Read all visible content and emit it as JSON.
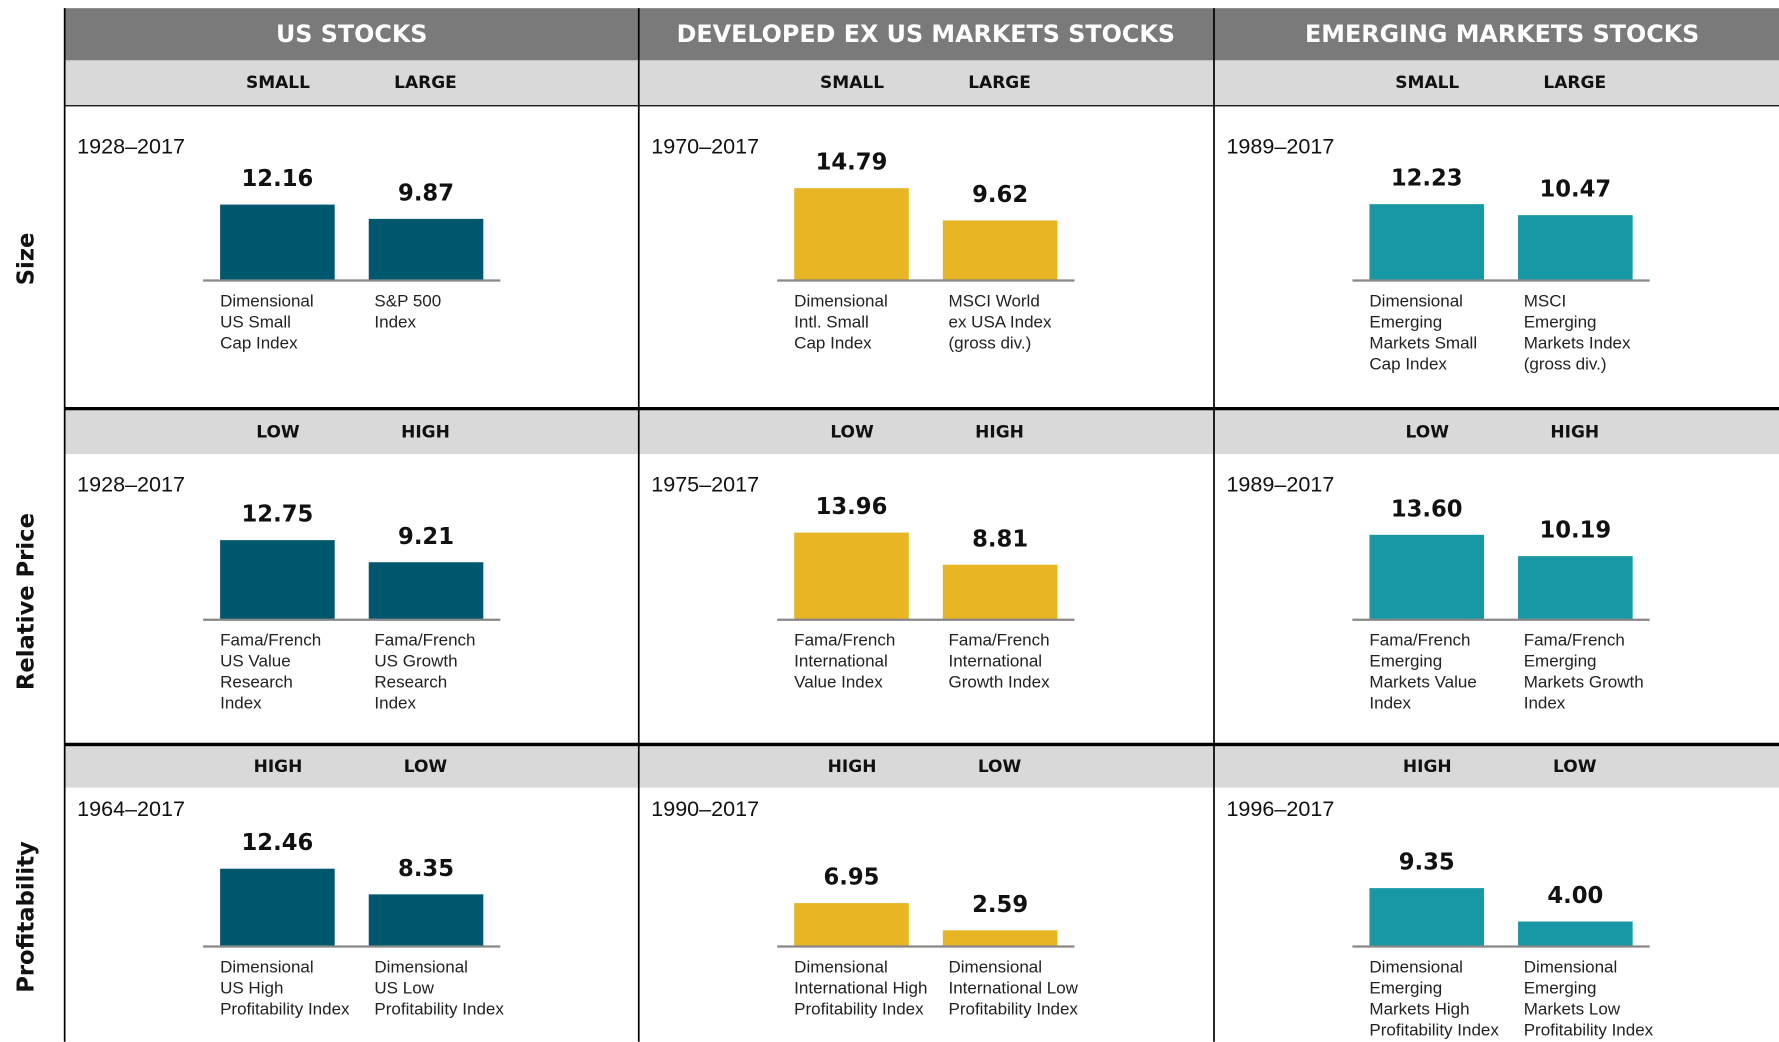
{
  "columns": [
    "US STOCKS",
    "DEVELOPED EX US MARKETS STOCKS",
    "EMERGING MARKETS STOCKS"
  ],
  "rows": [
    "Size",
    "Relative Price",
    "Profitability"
  ],
  "chart_data": [
    {
      "type": "bar",
      "period": "1928–2017",
      "categories": [
        "SMALL",
        "LARGE"
      ],
      "values": [
        12.16,
        9.87
      ],
      "color": "#00586f",
      "labels": [
        [
          "Dimensional",
          "US Small",
          "Cap Index"
        ],
        [
          "S&P 500",
          "Index"
        ]
      ]
    },
    {
      "type": "bar",
      "period": "1970–2017",
      "categories": [
        "SMALL",
        "LARGE"
      ],
      "values": [
        14.79,
        9.62
      ],
      "color": "#e8b524",
      "labels": [
        [
          "Dimensional",
          "Intl. Small",
          "Cap Index"
        ],
        [
          "MSCI World",
          "ex USA Index",
          "(gross div.)"
        ]
      ]
    },
    {
      "type": "bar",
      "period": "1989–2017",
      "categories": [
        "SMALL",
        "LARGE"
      ],
      "values": [
        12.23,
        10.47
      ],
      "color": "#1898a4",
      "labels": [
        [
          "Dimensional",
          "Emerging",
          "Markets Small",
          "Cap Index"
        ],
        [
          "MSCI",
          "Emerging",
          "Markets Index",
          "(gross div.)"
        ]
      ]
    },
    {
      "type": "bar",
      "period": "1928–2017",
      "categories": [
        "LOW",
        "HIGH"
      ],
      "values": [
        12.75,
        9.21
      ],
      "color": "#00586f",
      "labels": [
        [
          "Fama/French",
          "US Value",
          "Research",
          "Index"
        ],
        [
          "Fama/French",
          "US Growth",
          "Research",
          "Index"
        ]
      ]
    },
    {
      "type": "bar",
      "period": "1975–2017",
      "categories": [
        "LOW",
        "HIGH"
      ],
      "values": [
        13.96,
        8.81
      ],
      "color": "#e8b524",
      "labels": [
        [
          "Fama/French",
          "International",
          "Value Index"
        ],
        [
          "Fama/French",
          "International",
          "Growth Index"
        ]
      ]
    },
    {
      "type": "bar",
      "period": "1989–2017",
      "categories": [
        "LOW",
        "HIGH"
      ],
      "values": [
        13.6,
        10.19
      ],
      "value_labels": [
        "13.60",
        "10.19"
      ],
      "color": "#1898a4",
      "labels": [
        [
          "Fama/French",
          "Emerging",
          "Markets Value",
          "Index"
        ],
        [
          "Fama/French",
          "Emerging",
          "Markets Growth",
          "Index"
        ]
      ]
    },
    {
      "type": "bar",
      "period": "1964–2017",
      "categories": [
        "HIGH",
        "LOW"
      ],
      "values": [
        12.46,
        8.35
      ],
      "color": "#00586f",
      "labels": [
        [
          "Dimensional",
          "US High",
          "Profitability Index"
        ],
        [
          "Dimensional",
          "US Low",
          "Profitability Index"
        ]
      ]
    },
    {
      "type": "bar",
      "period": "1990–2017",
      "categories": [
        "HIGH",
        "LOW"
      ],
      "values": [
        6.95,
        2.59
      ],
      "color": "#e8b524",
      "labels": [
        [
          "Dimensional",
          "International High",
          "Profitability Index"
        ],
        [
          "Dimensional",
          "International Low",
          "Profitability Index"
        ]
      ]
    },
    {
      "type": "bar",
      "period": "1996–2017",
      "categories": [
        "HIGH",
        "LOW"
      ],
      "values": [
        9.35,
        4.0
      ],
      "value_labels": [
        "9.35",
        "4.00"
      ],
      "color": "#1898a4",
      "labels": [
        [
          "Dimensional",
          "Emerging",
          "Markets High",
          "Profitability Index"
        ],
        [
          "Dimensional",
          "Emerging",
          "Markets Low",
          "Profitability Index"
        ]
      ]
    }
  ]
}
